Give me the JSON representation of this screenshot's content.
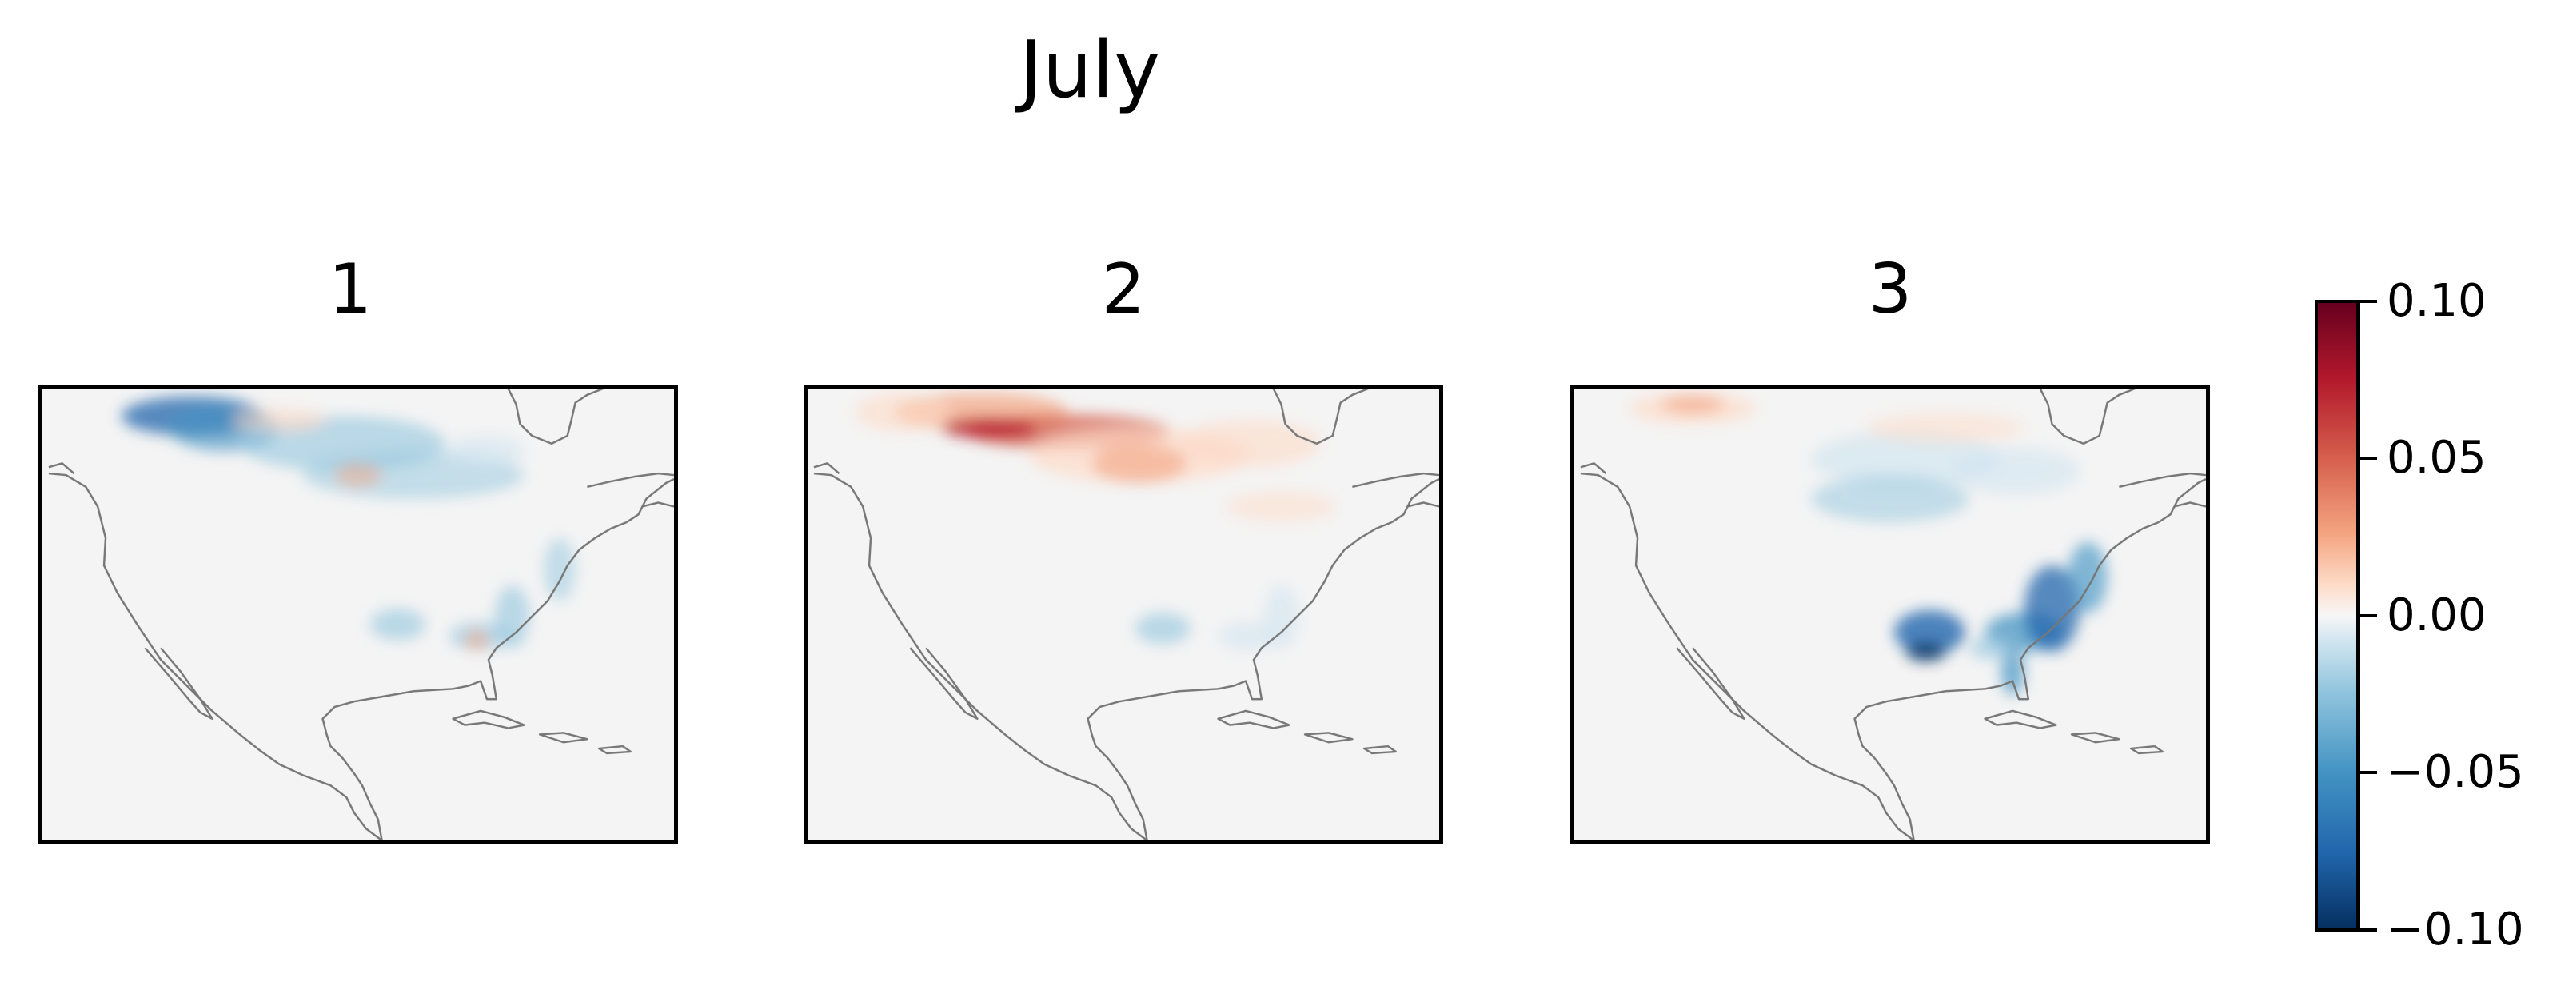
{
  "chart_data": {
    "type": "heatmap",
    "title": "July",
    "panels": [
      {
        "title": "1",
        "dominant": "negative (blue) over northern plains and southern Canada; weak positive streaks; light blue along Gulf and Atlantic coast"
      },
      {
        "title": "2",
        "dominant": "positive (red) across southern Canada and northern US; light blue along Gulf coast"
      },
      {
        "title": "3",
        "dominant": "negative (blue) along southeastern US coast and Florida; light positive in northwest"
      }
    ],
    "colorbar": {
      "colormap": "RdBu_r",
      "range": [
        -0.1,
        0.1
      ],
      "ticks": [
        "0.10",
        "0.05",
        "0.00",
        "−0.05",
        "−0.10"
      ]
    }
  },
  "colors": {
    "map_background": "#f4f4f4",
    "coastline": "#777777",
    "strong_red": "#67001f",
    "red": "#d6604d",
    "light_red": "#f4a582",
    "pale_red": "#fddbc7",
    "strong_blue": "#053061",
    "blue": "#2166ac",
    "light_blue": "#92c5de",
    "pale_blue": "#d1e5f0"
  }
}
